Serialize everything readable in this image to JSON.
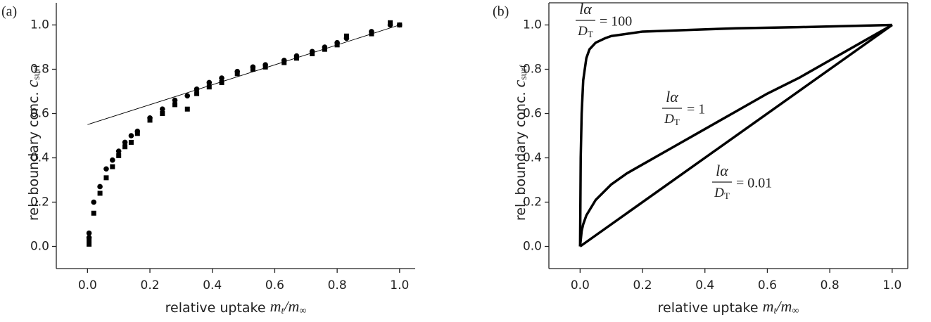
{
  "chart_data": [
    {
      "type": "scatter",
      "panel_label": "(a)",
      "ylabel": {
        "text": "rel. boundary conc.",
        "symbol": "c",
        "sub": "surf"
      },
      "xlabel": {
        "text": "relative uptake",
        "symbol": "m",
        "sub": "t",
        "symbol2": "/m",
        "sub2": "∞"
      },
      "xlim": [
        -0.1,
        1.05
      ],
      "ylim": [
        -0.1,
        1.1
      ],
      "xticks": [
        {
          "value": 0,
          "label": "0.0"
        },
        0.2,
        0.4,
        0.6,
        0.8,
        {
          "value": 1,
          "label": "1.0"
        }
      ],
      "yticks": [
        {
          "value": 0,
          "label": "0.0"
        },
        0.2,
        0.4,
        0.6,
        0.8,
        {
          "value": 1,
          "label": "1.0"
        }
      ],
      "frame": "open",
      "series": [
        {
          "marker": "circle",
          "color": "#000000",
          "x": [
            0.005,
            0.005,
            0.02,
            0.04,
            0.06,
            0.08,
            0.1,
            0.12,
            0.14,
            0.16,
            0.2,
            0.24,
            0.28,
            0.32,
            0.35,
            0.39,
            0.43,
            0.48,
            0.53,
            0.57,
            0.63,
            0.67,
            0.72,
            0.76,
            0.8,
            0.83,
            0.91,
            0.97,
            1.0
          ],
          "values": [
            0.06,
            0.04,
            0.2,
            0.27,
            0.35,
            0.39,
            0.43,
            0.47,
            0.5,
            0.52,
            0.58,
            0.62,
            0.66,
            0.68,
            0.71,
            0.74,
            0.76,
            0.79,
            0.81,
            0.82,
            0.84,
            0.86,
            0.88,
            0.9,
            0.92,
            0.94,
            0.97,
            1.0,
            1.0
          ]
        },
        {
          "marker": "square",
          "color": "#000000",
          "x": [
            0.005,
            0.005,
            0.02,
            0.04,
            0.06,
            0.08,
            0.1,
            0.12,
            0.14,
            0.16,
            0.2,
            0.24,
            0.28,
            0.32,
            0.35,
            0.39,
            0.43,
            0.48,
            0.53,
            0.57,
            0.63,
            0.67,
            0.72,
            0.76,
            0.8,
            0.83,
            0.91,
            0.97,
            1.0
          ],
          "values": [
            0.01,
            0.03,
            0.15,
            0.24,
            0.31,
            0.36,
            0.41,
            0.45,
            0.47,
            0.51,
            0.57,
            0.6,
            0.64,
            0.62,
            0.69,
            0.72,
            0.74,
            0.78,
            0.8,
            0.81,
            0.83,
            0.85,
            0.87,
            0.89,
            0.91,
            0.95,
            0.96,
            1.01,
            1.0
          ]
        },
        {
          "marker": "none",
          "color": "#000000",
          "x": [
            0,
            1
          ],
          "values": [
            0.55,
            1.0
          ]
        }
      ]
    },
    {
      "type": "line",
      "panel_label": "(b)",
      "ylabel": {
        "text": "rel. boundary conc.",
        "symbol": "c",
        "sub": "surf"
      },
      "xlabel": {
        "text": "relative uptake",
        "symbol": "m",
        "sub": "t",
        "symbol2": "/m",
        "sub2": "∞"
      },
      "xlim": [
        -0.1,
        1.05
      ],
      "ylim": [
        -0.1,
        1.1
      ],
      "xticks": [
        {
          "value": 0,
          "label": "0.0"
        },
        0.2,
        0.4,
        0.6,
        0.8,
        {
          "value": 1,
          "label": "1.0"
        }
      ],
      "yticks": [
        {
          "value": 0,
          "label": "0.0"
        },
        0.2,
        0.4,
        0.6,
        0.8,
        {
          "value": 1,
          "label": "1.0"
        }
      ],
      "frame": "box",
      "series": [
        {
          "color": "#000000",
          "x": [
            0,
            0.002,
            0.005,
            0.01,
            0.02,
            0.03,
            0.05,
            0.08,
            0.1,
            0.15,
            0.2,
            0.3,
            0.5,
            0.7,
            1.0
          ],
          "values": [
            0,
            0.4,
            0.6,
            0.75,
            0.85,
            0.89,
            0.92,
            0.94,
            0.95,
            0.96,
            0.97,
            0.975,
            0.985,
            0.99,
            1.0
          ]
        },
        {
          "color": "#000000",
          "x": [
            0,
            0.005,
            0.01,
            0.02,
            0.05,
            0.1,
            0.15,
            0.2,
            0.3,
            0.4,
            0.5,
            0.6,
            0.7,
            0.8,
            0.9,
            1.0
          ],
          "values": [
            0,
            0.07,
            0.1,
            0.14,
            0.21,
            0.28,
            0.33,
            0.37,
            0.45,
            0.53,
            0.61,
            0.69,
            0.76,
            0.84,
            0.92,
            1.0
          ]
        },
        {
          "color": "#000000",
          "x": [
            0,
            1
          ],
          "values": [
            0,
            1
          ]
        }
      ],
      "annotations": [
        {
          "numerator": "lα",
          "denominator": "D",
          "denominator_sub": "T",
          "text": "= 100"
        },
        {
          "numerator": "lα",
          "denominator": "D",
          "denominator_sub": "T",
          "text": "= 1"
        },
        {
          "numerator": "lα",
          "denominator": "D",
          "denominator_sub": "T",
          "text": "= 0.01"
        }
      ]
    }
  ]
}
